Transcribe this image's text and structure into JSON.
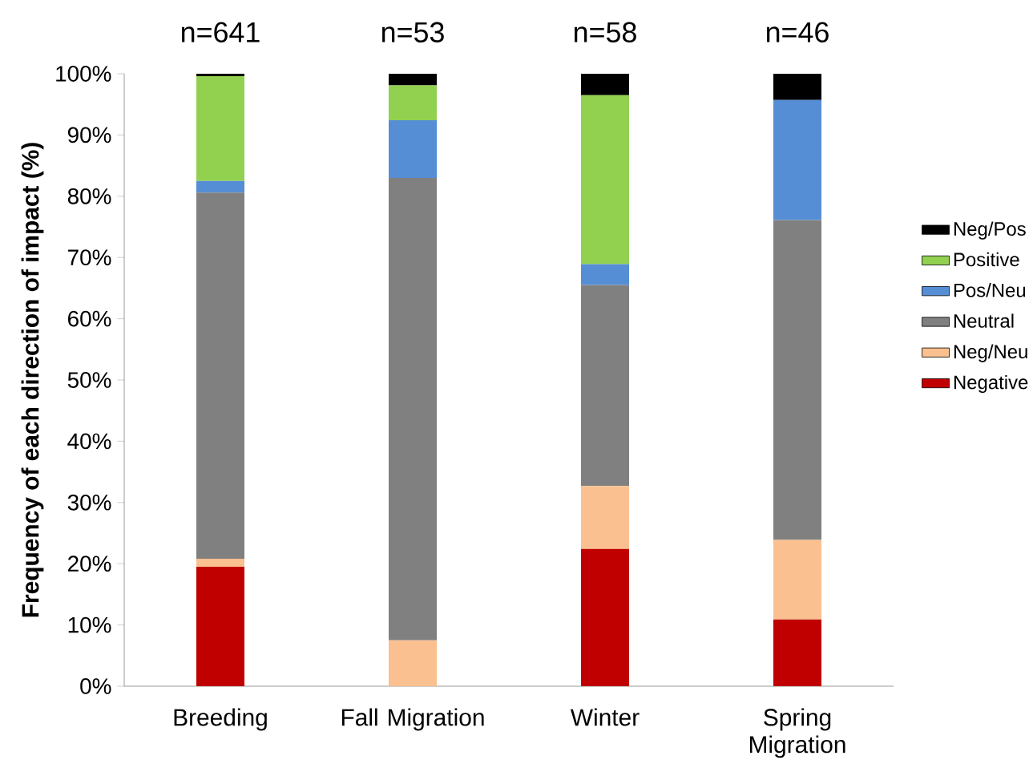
{
  "chart_data": {
    "type": "bar",
    "stacked": true,
    "categories": [
      "Breeding",
      "Fall Migration",
      "Winter",
      "Spring Migration"
    ],
    "series": [
      {
        "name": "Negative",
        "color": "#c00000",
        "values": [
          19.5,
          0,
          22.4,
          10.9
        ]
      },
      {
        "name": "Neg/Neu",
        "color": "#fac090",
        "values": [
          1.3,
          7.5,
          10.3,
          13.0
        ]
      },
      {
        "name": "Neutral",
        "color": "#808080",
        "values": [
          59.8,
          75.5,
          32.8,
          52.2
        ]
      },
      {
        "name": "Pos/Neu",
        "color": "#558ed5",
        "values": [
          1.9,
          9.4,
          3.4,
          19.6
        ]
      },
      {
        "name": "Positive",
        "color": "#92d050",
        "values": [
          17.1,
          5.7,
          27.6,
          0
        ]
      },
      {
        "name": "Neg/Pos",
        "color": "#000000",
        "values": [
          0.4,
          1.9,
          3.5,
          4.3
        ]
      }
    ],
    "ylim": [
      0,
      100
    ],
    "yticks": [
      {
        "value": 0,
        "label": "0%"
      },
      {
        "value": 10,
        "label": "10%"
      },
      {
        "value": 20,
        "label": "20%"
      },
      {
        "value": 30,
        "label": "30%"
      },
      {
        "value": 40,
        "label": "40%"
      },
      {
        "value": 50,
        "label": "50%"
      },
      {
        "value": 60,
        "label": "60%"
      },
      {
        "value": 70,
        "label": "70%"
      },
      {
        "value": 80,
        "label": "80%"
      },
      {
        "value": 90,
        "label": "90%"
      },
      {
        "value": 100,
        "label": "100%"
      }
    ],
    "ylabel": "Frequency of each direction of impact (%)",
    "legend": "right",
    "annotations": [
      "n=641",
      "n=53",
      "n=58",
      "n=46"
    ]
  }
}
